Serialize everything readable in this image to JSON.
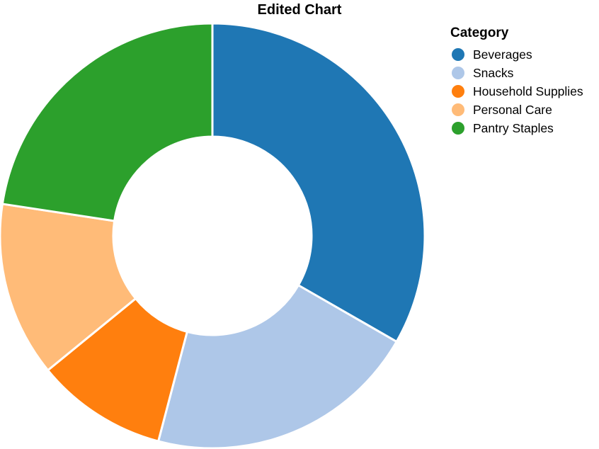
{
  "chart_data": {
    "type": "pie",
    "variant": "donut",
    "title": "Edited Chart",
    "legend": {
      "title": "Category",
      "placement": "top-right"
    },
    "categories": [
      "Beverages",
      "Snacks",
      "Household Supplies",
      "Personal Care",
      "Pantry Staples"
    ],
    "values": [
      33.3,
      20.8,
      10.0,
      13.3,
      22.6
    ],
    "colors": [
      "#1f77b4",
      "#aec7e8",
      "#ff7f0e",
      "#ffbb78",
      "#2ca02c"
    ],
    "start_angle_deg": 0,
    "direction": "clockwise"
  }
}
